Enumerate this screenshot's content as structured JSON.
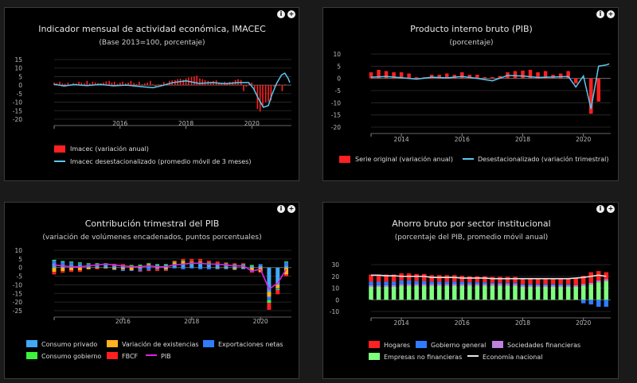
{
  "panels": {
    "p1": {
      "info_label": "i",
      "expand_label": "+"
    },
    "p2": {
      "info_label": "i",
      "expand_label": "+"
    },
    "p3": {
      "info_label": "i",
      "expand_label": "+"
    },
    "p4": {
      "info_label": "i",
      "expand_label": "+"
    }
  },
  "chart_data": [
    {
      "id": "imacec",
      "type": "bar",
      "title": "Indicador mensual de actividad económica, IMACEC",
      "subtitle": "(Base 2013=100, porcentaje)",
      "yticks": [
        15,
        10,
        5,
        0,
        -5,
        -10,
        -15,
        -20
      ],
      "ylim": [
        -20,
        15
      ],
      "xlim": [
        2014,
        2021.2
      ],
      "xticks": [
        2016,
        2018,
        2020
      ],
      "colors": {
        "bar": "#ff2020",
        "line": "#5bc8ef"
      },
      "legend": [
        "Imacec (variación anual)",
        "Imacec desestacionalizado (promedio móvil de 3 meses)"
      ],
      "series": [
        {
          "name": "Imacec (variación anual)",
          "type": "bar",
          "x": [
            2014.0,
            2014.08,
            2014.17,
            2014.25,
            2014.33,
            2014.42,
            2014.5,
            2014.58,
            2014.67,
            2014.75,
            2014.83,
            2014.92,
            2015.0,
            2015.08,
            2015.17,
            2015.25,
            2015.33,
            2015.42,
            2015.5,
            2015.58,
            2015.67,
            2015.75,
            2015.83,
            2015.92,
            2016.0,
            2016.08,
            2016.17,
            2016.25,
            2016.33,
            2016.42,
            2016.5,
            2016.58,
            2016.67,
            2016.75,
            2016.83,
            2016.92,
            2017.0,
            2017.08,
            2017.17,
            2017.25,
            2017.33,
            2017.42,
            2017.5,
            2017.58,
            2017.67,
            2017.75,
            2017.83,
            2017.92,
            2018.0,
            2018.08,
            2018.17,
            2018.25,
            2018.33,
            2018.42,
            2018.5,
            2018.58,
            2018.67,
            2018.75,
            2018.83,
            2018.92,
            2019.0,
            2019.08,
            2019.17,
            2019.25,
            2019.33,
            2019.42,
            2019.5,
            2019.58,
            2019.67,
            2019.75,
            2019.83,
            2019.92,
            2020.0,
            2020.08,
            2020.17,
            2020.25,
            2020.33,
            2020.42,
            2020.5,
            2020.58,
            2020.67,
            2020.75,
            2020.83,
            2020.92,
            2021.0
          ],
          "y": [
            1.5,
            1.0,
            2.0,
            1.0,
            0.8,
            1.5,
            0.5,
            1.2,
            1.0,
            2.0,
            1.5,
            1.0,
            2.5,
            1.0,
            2.0,
            1.5,
            1.2,
            1.0,
            1.5,
            2.2,
            2.5,
            1.5,
            2.0,
            0.8,
            1.5,
            2.0,
            1.0,
            1.5,
            2.5,
            1.2,
            0.5,
            2.0,
            0.5,
            1.0,
            1.5,
            2.5,
            0.5,
            -1.0,
            0.5,
            0.5,
            1.8,
            1.0,
            2.5,
            2.8,
            3.0,
            3.5,
            3.8,
            3.2,
            4.0,
            4.5,
            4.8,
            5.0,
            5.5,
            4.0,
            3.5,
            3.0,
            2.5,
            2.0,
            2.5,
            2.8,
            1.5,
            1.5,
            2.0,
            1.5,
            2.0,
            2.0,
            3.0,
            3.5,
            3.0,
            -3.5,
            -1.0,
            1.0,
            1.5,
            -3.0,
            -14.0,
            -15.5,
            -13.0,
            -10.0,
            -9.5,
            -9.0,
            -1.0,
            -0.5,
            0.5,
            -3.5,
            0.5
          ]
        },
        {
          "name": "Imacec desestacionalizado (promedio móvil de 3 meses)",
          "type": "line",
          "x": [
            2014.0,
            2014.3,
            2014.6,
            2015.0,
            2015.4,
            2015.8,
            2016.2,
            2016.6,
            2017.0,
            2017.3,
            2017.6,
            2018.0,
            2018.4,
            2018.8,
            2019.2,
            2019.6,
            2019.9,
            2020.05,
            2020.2,
            2020.35,
            2020.5,
            2020.6,
            2020.75,
            2020.9,
            2021.0,
            2021.1,
            2021.15
          ],
          "y": [
            0.5,
            -0.5,
            0.3,
            -0.3,
            0.4,
            -0.4,
            0.0,
            -0.8,
            -1.5,
            -0.2,
            1.5,
            2.5,
            1.0,
            1.5,
            0.8,
            1.5,
            1.5,
            -2.0,
            -8.0,
            -13.0,
            -12.0,
            -6.0,
            1.0,
            6.0,
            7.0,
            4.0,
            1.5
          ]
        }
      ]
    },
    {
      "id": "pib",
      "type": "bar",
      "title": "Producto interno bruto (PIB)",
      "subtitle": "(porcentaje)",
      "yticks": [
        10,
        5,
        0,
        -5,
        -10,
        -15,
        -20
      ],
      "ylim": [
        -20,
        10
      ],
      "xlim": [
        2013,
        2020.9
      ],
      "xticks": [
        2014,
        2016,
        2018,
        2020
      ],
      "colors": {
        "bar": "#ff2020",
        "line": "#5bc8ef"
      },
      "legend": [
        "Serie original (variación anual)",
        "Desestacionalizado (variación trimestral)"
      ],
      "series": [
        {
          "name": "Serie original (variación anual)",
          "type": "bar",
          "x": [
            2013.0,
            2013.25,
            2013.5,
            2013.75,
            2014.0,
            2014.25,
            2014.5,
            2014.75,
            2015.0,
            2015.25,
            2015.5,
            2015.75,
            2016.0,
            2016.25,
            2016.5,
            2016.75,
            2017.0,
            2017.25,
            2017.5,
            2017.75,
            2018.0,
            2018.25,
            2018.5,
            2018.75,
            2019.0,
            2019.25,
            2019.5,
            2019.75,
            2020.0,
            2020.25,
            2020.5,
            2020.75
          ],
          "y": [
            2.5,
            3.5,
            3.0,
            2.5,
            2.5,
            2.0,
            0.5,
            0.5,
            1.5,
            1.5,
            2.0,
            1.5,
            2.5,
            1.5,
            1.5,
            0.5,
            0.5,
            1.0,
            2.5,
            3.0,
            3.2,
            3.5,
            2.5,
            3.0,
            1.5,
            2.0,
            3.0,
            -2.0,
            0.0,
            -14.5,
            -9.5,
            0.0
          ]
        },
        {
          "name": "Desestacionalizado (variación trimestral)",
          "type": "line",
          "x": [
            2013.0,
            2013.5,
            2014.0,
            2014.5,
            2015.0,
            2015.5,
            2016.0,
            2016.5,
            2017.0,
            2017.5,
            2018.0,
            2018.5,
            2019.0,
            2019.5,
            2019.75,
            2020.0,
            2020.25,
            2020.5,
            2020.75,
            2020.85
          ],
          "y": [
            0.5,
            0.8,
            0.3,
            -0.3,
            0.5,
            0.2,
            0.8,
            0.0,
            -1.0,
            1.2,
            1.0,
            0.4,
            0.6,
            0.8,
            -3.5,
            1.0,
            -12.5,
            5.0,
            5.5,
            6.0
          ]
        }
      ]
    },
    {
      "id": "contribucion",
      "type": "bar",
      "stacked": true,
      "title": "Contribución trimestral del PIB",
      "subtitle": "(variación de volúmenes encadenados, puntos porcentuales)",
      "yticks": [
        10,
        5,
        0,
        -5,
        -10,
        -15,
        -20,
        -25
      ],
      "ylim": [
        -25,
        10
      ],
      "xlim": [
        2014,
        2020.9
      ],
      "xticks": [
        2016,
        2018,
        2020
      ],
      "colors": {
        "Consumo privado": "#3fa9f5",
        "Variación de existencias": "#ffb21e",
        "Exportaciones netas": "#2f7cff",
        "Consumo gobierno": "#3cf23c",
        "FBCF": "#ff2020",
        "PIB": "#e020e0"
      },
      "legend": [
        "Consumo privado",
        "Variación de existencias",
        "Exportaciones netas",
        "Consumo gobierno",
        "FBCF",
        "PIB"
      ],
      "x": [
        2014.0,
        2014.25,
        2014.5,
        2014.75,
        2015.0,
        2015.25,
        2015.5,
        2015.75,
        2016.0,
        2016.25,
        2016.5,
        2016.75,
        2017.0,
        2017.25,
        2017.5,
        2017.75,
        2018.0,
        2018.25,
        2018.5,
        2018.75,
        2019.0,
        2019.25,
        2019.5,
        2019.75,
        2020.0,
        2020.25,
        2020.5,
        2020.75
      ],
      "series": [
        {
          "name": "Consumo privado",
          "values": [
            2.5,
            1.8,
            1.5,
            1.5,
            1.5,
            1.5,
            1.5,
            1.2,
            1.0,
            1.0,
            1.2,
            1.5,
            1.5,
            1.5,
            2.0,
            2.0,
            2.0,
            2.5,
            2.0,
            2.0,
            2.0,
            1.5,
            1.5,
            1.0,
            1.0,
            -14.0,
            -10.0,
            1.0
          ]
        },
        {
          "name": "Variación de existencias",
          "values": [
            -2.5,
            -2.0,
            -1.5,
            -1.5,
            -1.0,
            -0.5,
            -0.5,
            -1.0,
            -1.0,
            -1.5,
            -0.5,
            0.5,
            -0.5,
            -1.0,
            1.0,
            1.5,
            1.0,
            0.5,
            0.5,
            -0.5,
            -0.5,
            -1.0,
            -0.5,
            -2.0,
            -2.5,
            -3.0,
            -2.0,
            -4.0
          ]
        },
        {
          "name": "Exportaciones netas",
          "values": [
            1.5,
            1.5,
            1.5,
            1.0,
            0.5,
            0.5,
            0.5,
            -0.5,
            -1.0,
            -0.5,
            -1.5,
            -1.5,
            -0.5,
            -0.5,
            -0.5,
            -1.0,
            -0.5,
            -1.0,
            -1.0,
            -0.5,
            -0.5,
            -0.5,
            -0.5,
            -0.5,
            1.0,
            -2.0,
            -0.5,
            2.0
          ]
        },
        {
          "name": "Consumo gobierno",
          "values": [
            0.5,
            0.5,
            0.5,
            0.5,
            0.5,
            0.5,
            0.5,
            0.5,
            0.5,
            0.5,
            0.5,
            0.5,
            0.5,
            0.5,
            0.5,
            0.5,
            0.5,
            0.5,
            0.5,
            0.5,
            0.5,
            0.5,
            0.5,
            0.5,
            0.0,
            -1.5,
            -0.5,
            0.5
          ]
        },
        {
          "name": "FBCF",
          "values": [
            -1.5,
            -1.0,
            -1.0,
            -1.0,
            0.0,
            -0.5,
            0.0,
            0.5,
            0.5,
            0.0,
            -0.5,
            -0.5,
            -1.0,
            -0.5,
            0.5,
            1.0,
            1.5,
            1.5,
            1.0,
            1.0,
            0.5,
            0.5,
            0.5,
            -0.5,
            -0.5,
            -4.0,
            -2.5,
            -1.0
          ]
        },
        {
          "name": "PIB",
          "type": "line",
          "values": [
            1.5,
            1.0,
            0.5,
            0.5,
            1.0,
            1.5,
            2.0,
            1.5,
            1.0,
            0.5,
            0.5,
            1.0,
            0.5,
            0.5,
            1.5,
            2.0,
            2.5,
            2.5,
            2.0,
            2.0,
            1.5,
            1.0,
            1.0,
            -2.0,
            -1.0,
            -12.5,
            -9.0,
            -1.0
          ]
        }
      ]
    },
    {
      "id": "ahorro",
      "type": "bar",
      "stacked": true,
      "title": "Ahorro bruto por sector institucional",
      "subtitle": "(porcentaje del PIB, promedio móvil anual)",
      "yticks": [
        30,
        20,
        10,
        0,
        -10
      ],
      "ylim": [
        -10,
        30
      ],
      "xlim": [
        2013,
        2020.9
      ],
      "xticks": [
        2014,
        2016,
        2018,
        2020
      ],
      "colors": {
        "Hogares": "#ff2020",
        "Gobierno general": "#2f7cff",
        "Sociedades financieras": "#c080e0",
        "Empresas no financieras": "#7fff7f",
        "Economía nacional": "#e6e6e6"
      },
      "legend": [
        "Hogares",
        "Gobierno general",
        "Sociedades financieras",
        "Empresas no financieras",
        "Economía nacional"
      ],
      "x": [
        2013.0,
        2013.25,
        2013.5,
        2013.75,
        2014.0,
        2014.25,
        2014.5,
        2014.75,
        2015.0,
        2015.25,
        2015.5,
        2015.75,
        2016.0,
        2016.25,
        2016.5,
        2016.75,
        2017.0,
        2017.25,
        2017.5,
        2017.75,
        2018.0,
        2018.25,
        2018.5,
        2018.75,
        2019.0,
        2019.25,
        2019.5,
        2019.75,
        2020.0,
        2020.25,
        2020.5,
        2020.75
      ],
      "series": [
        {
          "name": "Empresas no financieras",
          "values": [
            11,
            11,
            11,
            11,
            12,
            12,
            12,
            12,
            12,
            12,
            12,
            12,
            12,
            12,
            12,
            12,
            12,
            12,
            12,
            12,
            11,
            11,
            11,
            11,
            11,
            11,
            11,
            11,
            12,
            13,
            15,
            16
          ]
        },
        {
          "name": "Sociedades financieras",
          "values": [
            1.5,
            1.5,
            1.5,
            1.5,
            1.5,
            1.5,
            1.5,
            1.5,
            1.5,
            1.5,
            1.5,
            1.5,
            1.5,
            1.5,
            1.5,
            1.5,
            1.5,
            1.5,
            1.5,
            1.5,
            1.5,
            1.5,
            1.5,
            1.5,
            1.5,
            1.5,
            1.5,
            1.5,
            1.5,
            1.5,
            1.5,
            1.5
          ]
        },
        {
          "name": "Gobierno general",
          "values": [
            3,
            3,
            3,
            3,
            3,
            3,
            2.5,
            2.5,
            2,
            2,
            2,
            2,
            2,
            1.5,
            1.5,
            1.5,
            1,
            1,
            1,
            1,
            1,
            1,
            1,
            1,
            1,
            1,
            1,
            0,
            -3,
            -4,
            -6,
            -6
          ]
        },
        {
          "name": "Hogares",
          "values": [
            6,
            6,
            6,
            6,
            6,
            6,
            6,
            6,
            5.5,
            5.5,
            5.5,
            5.5,
            5,
            5,
            5,
            5,
            5,
            5,
            5,
            5,
            5,
            5,
            5,
            5,
            5,
            5,
            5,
            6,
            7,
            9,
            8,
            6
          ]
        },
        {
          "name": "Economía nacional",
          "type": "line",
          "values": [
            21,
            21,
            20.5,
            20.5,
            20,
            20,
            20,
            20,
            19,
            19,
            19,
            19,
            18.5,
            18.5,
            18.5,
            18.5,
            18,
            18,
            18,
            18,
            18,
            18,
            18,
            18,
            18,
            18,
            18,
            18.5,
            19,
            20,
            21,
            20
          ]
        }
      ]
    }
  ]
}
